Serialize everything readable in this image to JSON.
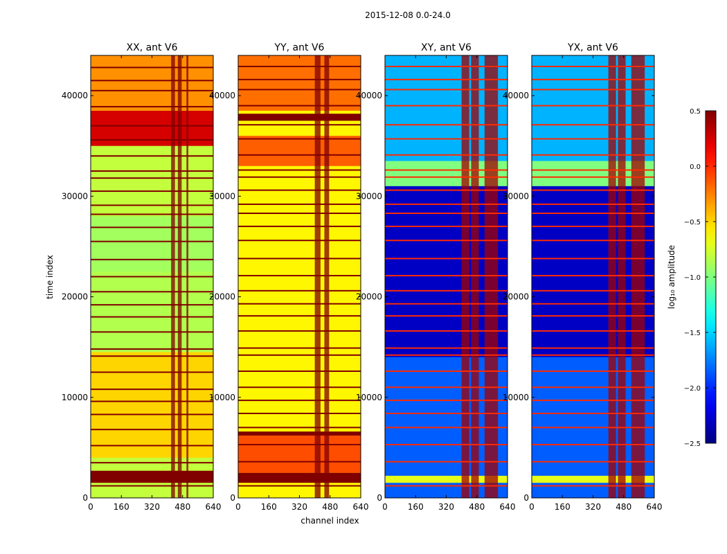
{
  "suptitle": "2015-12-08 0.0-24.0",
  "chart_data": [
    {
      "type": "heatmap",
      "title": "XX, ant V6",
      "polarization": "XX",
      "xlabel": "",
      "ylabel": "time index",
      "xlim": [
        0,
        640
      ],
      "ylim": [
        0,
        44000
      ],
      "xticks": [
        0,
        160,
        320,
        480,
        640
      ],
      "yticks": [
        0,
        10000,
        20000,
        30000,
        40000
      ],
      "base_level": -0.8,
      "level_hi": 0.5,
      "band_level": 0.5,
      "bands": [
        {
          "y0": 1500,
          "y1": 2700,
          "level": 0.5
        },
        {
          "y0": 35000,
          "y1": 38500,
          "level": 0.25
        },
        {
          "y0": 38500,
          "y1": 44000,
          "level": -0.3
        },
        {
          "y0": 4000,
          "y1": 14500,
          "level": -0.5
        },
        {
          "y0": 22500,
          "y1": 28000,
          "level": -0.9
        },
        {
          "y0": 14500,
          "y1": 22500,
          "level": -0.85
        }
      ],
      "rfi_channels": [
        [
          420,
          440
        ],
        [
          455,
          475
        ],
        [
          500,
          510
        ]
      ],
      "hlines": [
        1200,
        3500,
        5200,
        6800,
        8300,
        9600,
        10800,
        12500,
        14100,
        14800,
        16500,
        18000,
        19200,
        20500,
        22000,
        23700,
        25500,
        26900,
        28200,
        29100,
        30500,
        31800,
        32500,
        34000,
        35600,
        37000,
        38900,
        40500,
        41500,
        42800
      ]
    },
    {
      "type": "heatmap",
      "title": "YY, ant V6",
      "polarization": "YY",
      "xlabel": "channel index",
      "ylabel": "",
      "xlim": [
        0,
        640
      ],
      "ylim": [
        0,
        44000
      ],
      "xticks": [
        0,
        160,
        320,
        480,
        640
      ],
      "yticks": [
        0,
        10000,
        20000,
        30000,
        40000
      ],
      "base_level": -0.6,
      "level_hi": 0.5,
      "band_level": 0.5,
      "bands": [
        {
          "y0": 1500,
          "y1": 2500,
          "level": 0.5
        },
        {
          "y0": 2500,
          "y1": 6500,
          "level": -0.1
        },
        {
          "y0": 6200,
          "y1": 6600,
          "level": 0.5
        },
        {
          "y0": 33000,
          "y1": 36000,
          "level": -0.15
        },
        {
          "y0": 37500,
          "y1": 38200,
          "level": 0.5
        },
        {
          "y0": 38500,
          "y1": 44000,
          "level": -0.2
        }
      ],
      "rfi_channels": [
        [
          400,
          430
        ],
        [
          450,
          475
        ]
      ],
      "hlines": [
        1200,
        3600,
        5300,
        7000,
        8400,
        9700,
        11000,
        12600,
        14200,
        14900,
        16600,
        18100,
        19300,
        20600,
        22100,
        23800,
        25600,
        27000,
        28300,
        29200,
        30600,
        31900,
        32600,
        34100,
        35700,
        37100,
        39000,
        40600,
        41600,
        42900
      ]
    },
    {
      "type": "heatmap",
      "title": "XY, ant V6",
      "polarization": "XY",
      "xlabel": "",
      "ylabel": "",
      "xlim": [
        0,
        640
      ],
      "ylim": [
        0,
        44000
      ],
      "xticks": [
        0,
        160,
        320,
        480,
        640
      ],
      "yticks": [
        0,
        10000,
        20000,
        30000,
        40000
      ],
      "base_level": -1.85,
      "level_hi": 0.4,
      "band_level": 0.0,
      "bands": [
        {
          "y0": 1500,
          "y1": 2200,
          "level": -0.7
        },
        {
          "y0": 14000,
          "y1": 31000,
          "level": -2.3
        },
        {
          "y0": 31000,
          "y1": 33500,
          "level": -1.0
        },
        {
          "y0": 33500,
          "y1": 44000,
          "level": -1.6
        }
      ],
      "rfi_channels": [
        [
          400,
          440
        ],
        [
          450,
          490
        ],
        [
          520,
          590
        ]
      ],
      "hlines": [
        1200,
        3600,
        5300,
        7000,
        8400,
        9700,
        11000,
        12600,
        14200,
        14900,
        16600,
        18100,
        19300,
        20600,
        22100,
        23800,
        25600,
        27000,
        28300,
        29200,
        30600,
        31900,
        32600,
        34100,
        35700,
        37100,
        39000,
        40600,
        41600,
        42900
      ]
    },
    {
      "type": "heatmap",
      "title": "YX, ant V6",
      "polarization": "YX",
      "xlabel": "",
      "ylabel": "",
      "xlim": [
        0,
        640
      ],
      "ylim": [
        0,
        44000
      ],
      "xticks": [
        0,
        160,
        320,
        480,
        640
      ],
      "yticks": [
        0,
        10000,
        20000,
        30000,
        40000
      ],
      "base_level": -1.85,
      "level_hi": 0.4,
      "band_level": 0.0,
      "bands": [
        {
          "y0": 1500,
          "y1": 2200,
          "level": -0.7
        },
        {
          "y0": 14000,
          "y1": 31000,
          "level": -2.3
        },
        {
          "y0": 31000,
          "y1": 33500,
          "level": -1.0
        },
        {
          "y0": 33500,
          "y1": 44000,
          "level": -1.6
        }
      ],
      "rfi_channels": [
        [
          400,
          440
        ],
        [
          450,
          490
        ],
        [
          520,
          590
        ]
      ],
      "hlines": [
        1200,
        3600,
        5300,
        7000,
        8400,
        9700,
        11000,
        12600,
        14200,
        14900,
        16600,
        18100,
        19300,
        20600,
        22100,
        23800,
        25600,
        27000,
        28300,
        29200,
        30600,
        31900,
        32600,
        34100,
        35700,
        37100,
        39000,
        40600,
        41600,
        42900
      ]
    }
  ],
  "colorbar": {
    "label": "log₁₀ amplitude",
    "vmin": -2.5,
    "vmax": 0.5,
    "ticks": [
      0.5,
      0.0,
      -0.5,
      -1.0,
      -1.5,
      -2.0,
      -2.5
    ],
    "tick_labels": [
      "0.5",
      "0.0",
      "−0.5",
      "−1.0",
      "−1.5",
      "−2.0",
      "−2.5"
    ],
    "colormap": "jet"
  },
  "colors": {
    "axis": "#000000",
    "background": "#ffffff"
  }
}
